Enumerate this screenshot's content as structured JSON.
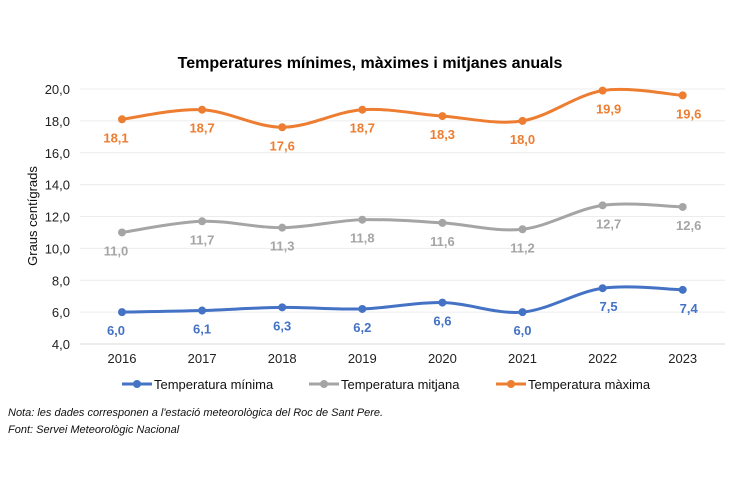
{
  "chart_data": {
    "type": "line",
    "title": "Temperatures mínimes, màximes i mitjanes anuals",
    "ylabel": "Graus centígrads",
    "xlabel": "",
    "categories": [
      "2016",
      "2017",
      "2018",
      "2019",
      "2020",
      "2021",
      "2022",
      "2023"
    ],
    "ylim": [
      4,
      20
    ],
    "yticks": [
      "4,0",
      "6,0",
      "8,0",
      "10,0",
      "12,0",
      "14,0",
      "16,0",
      "18,0",
      "20,0"
    ],
    "grid": true,
    "smooth": true,
    "legend": "bottom",
    "series": [
      {
        "name": "Temperatura mínima",
        "color": "#4472c4",
        "values": [
          6.0,
          6.1,
          6.3,
          6.2,
          6.6,
          6.0,
          7.5,
          7.4
        ],
        "labels": [
          "6,0",
          "6,1",
          "6,3",
          "6,2",
          "6,6",
          "6,0",
          "7,5",
          "7,4"
        ]
      },
      {
        "name": "Temperatura mitjana",
        "color": "#a5a5a5",
        "values": [
          11.0,
          11.7,
          11.3,
          11.8,
          11.6,
          11.2,
          12.7,
          12.6
        ],
        "labels": [
          "11,0",
          "11,7",
          "11,3",
          "11,8",
          "11,6",
          "11,2",
          "12,7",
          "12,6"
        ]
      },
      {
        "name": "Temperatura màxima",
        "color": "#ed7d31",
        "values": [
          18.1,
          18.7,
          17.6,
          18.7,
          18.3,
          18.0,
          19.9,
          19.6
        ],
        "labels": [
          "18,1",
          "18,7",
          "17,6",
          "18,7",
          "18,3",
          "18,0",
          "19,9",
          "19,6"
        ]
      }
    ]
  },
  "notes": {
    "nota": "Nota: les dades corresponen a l'estació meteorològica del Roc de Sant Pere.",
    "font": "Font: Servei Meteorològic Nacional"
  }
}
